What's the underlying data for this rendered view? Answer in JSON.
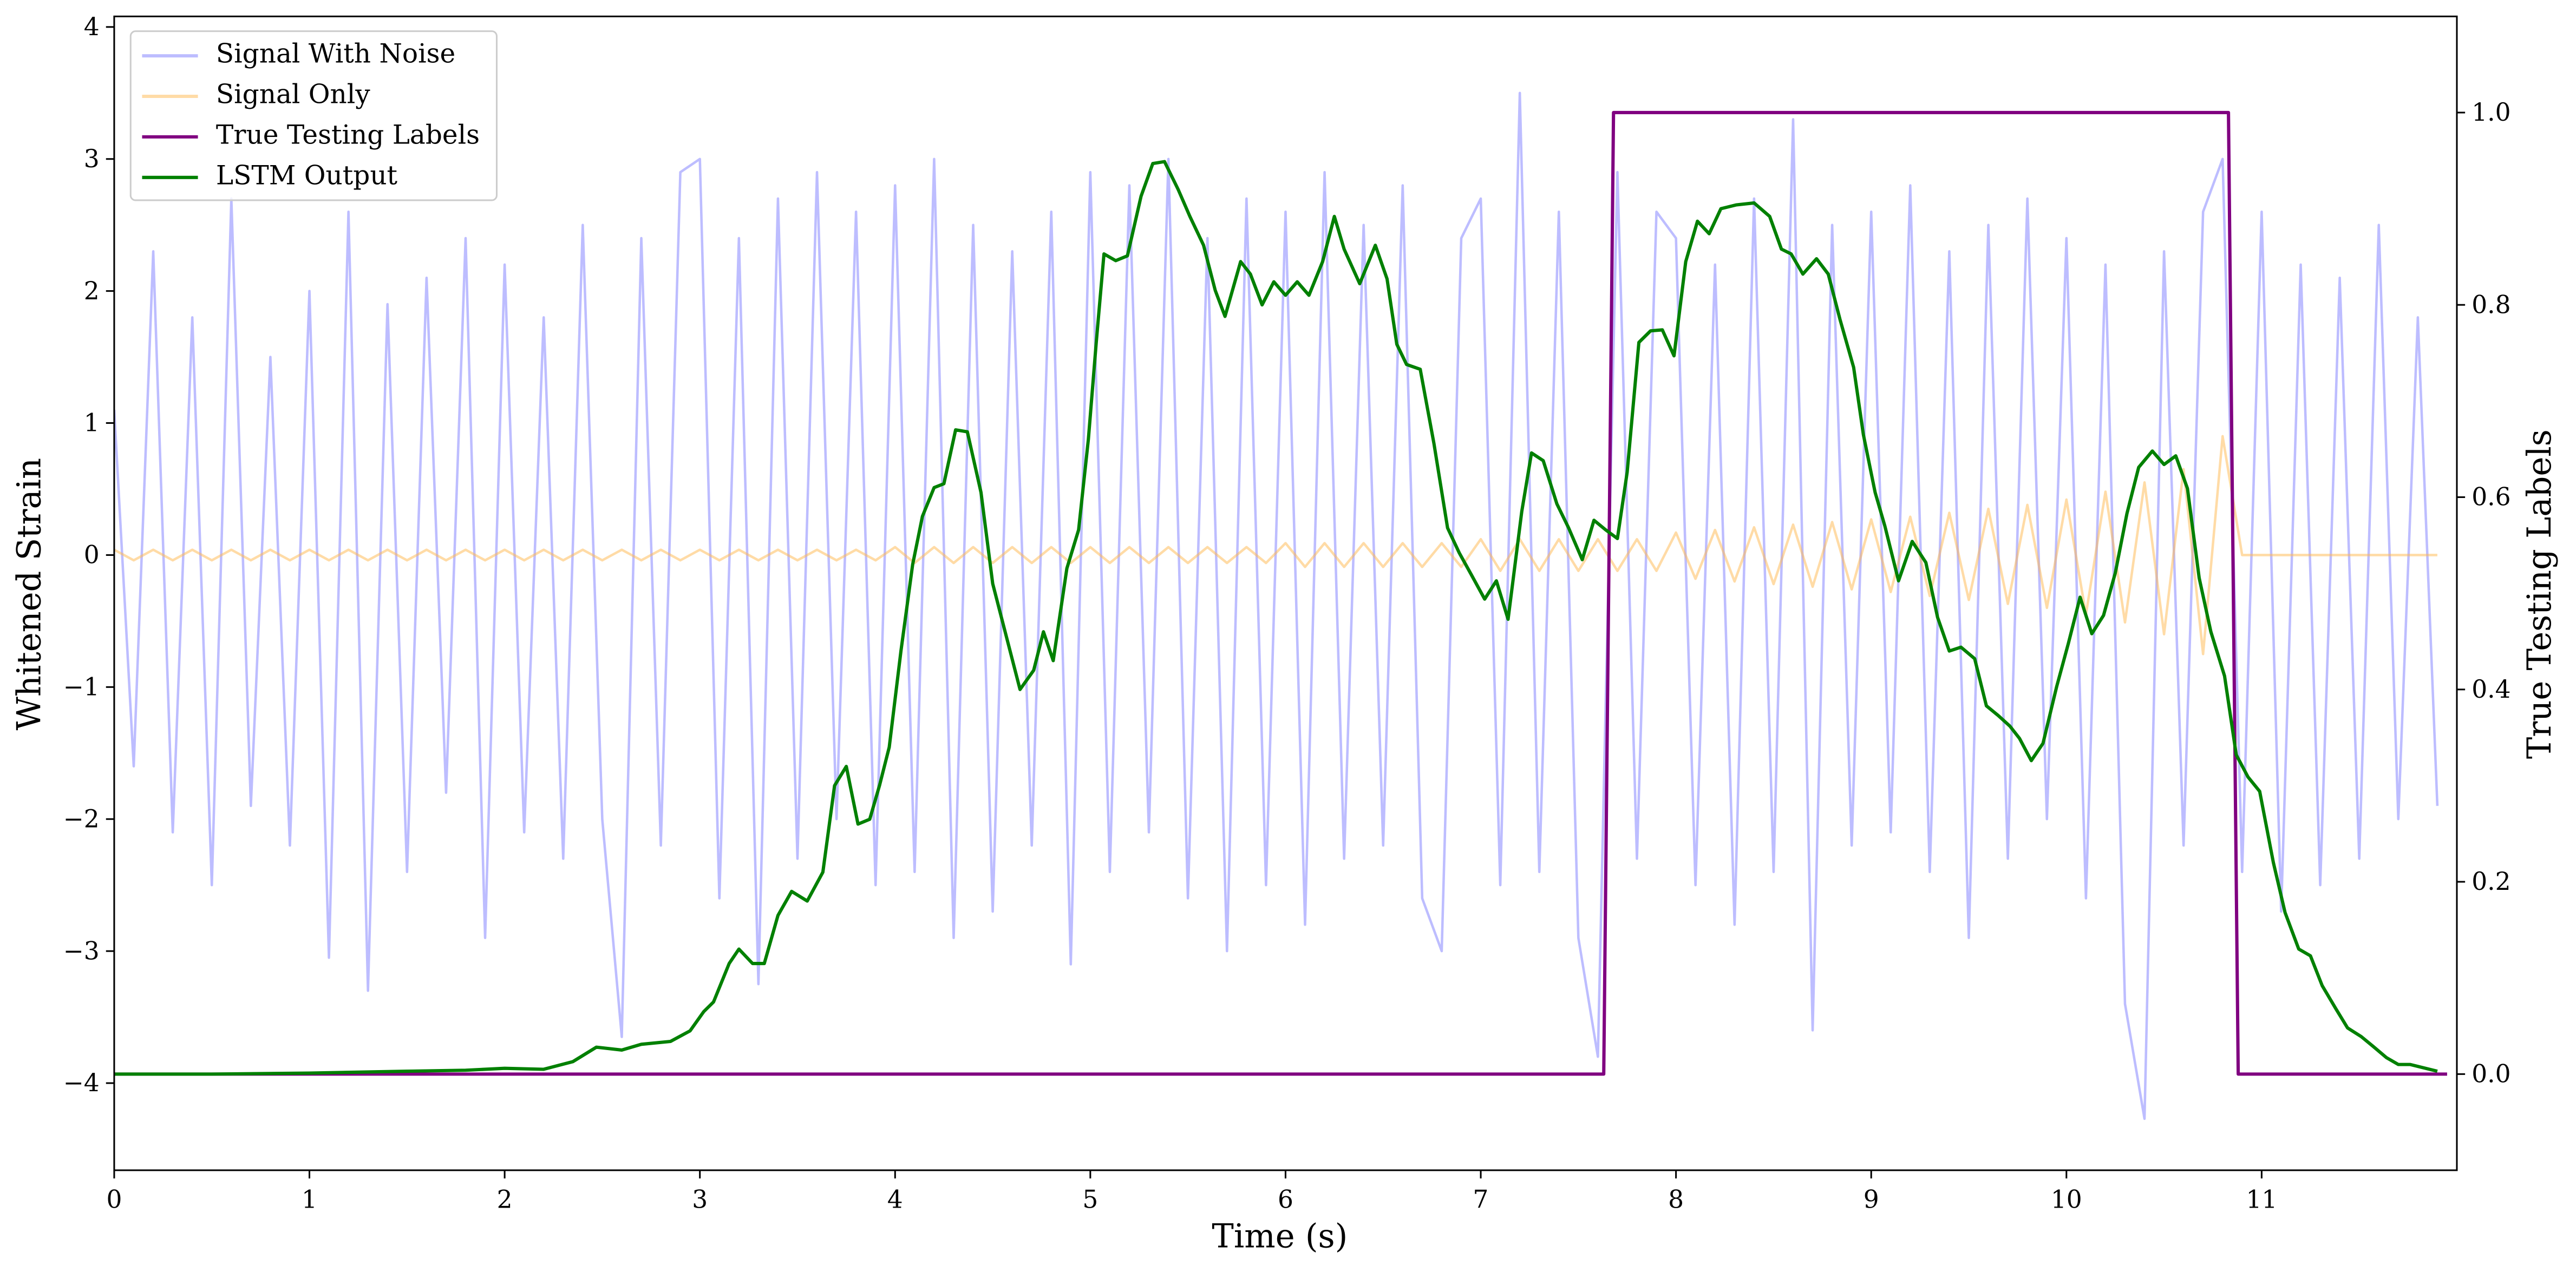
{
  "chart_data": {
    "type": "line",
    "xlabel": "Time (s)",
    "ylabel": "Whitened Strain",
    "y2label": "True Testing Labels",
    "xlim": [
      0,
      12.0
    ],
    "ylim": [
      -4.66,
      4.08
    ],
    "y2lim": [
      -0.1,
      1.1
    ],
    "xticks": [
      0,
      1,
      2,
      3,
      4,
      5,
      6,
      7,
      8,
      9,
      10,
      11
    ],
    "yticks": [
      {
        "value": -4,
        "label": "−4"
      },
      {
        "value": -3,
        "label": "−3"
      },
      {
        "value": -2,
        "label": "−2"
      },
      {
        "value": -1,
        "label": "−1"
      },
      0,
      1,
      2,
      3,
      4
    ],
    "y2ticks": [
      {
        "value": 0,
        "label": "0.0"
      },
      {
        "value": 0.2,
        "label": "0.2"
      },
      {
        "value": 0.4,
        "label": "0.4"
      },
      {
        "value": 0.6,
        "label": "0.6"
      },
      {
        "value": 0.8,
        "label": "0.8"
      },
      {
        "value": 1.0,
        "label": "1.0"
      }
    ],
    "legend": "upper left",
    "x": [
      0,
      0.1,
      0.2,
      0.3,
      0.4,
      0.5,
      0.6,
      0.7,
      0.8,
      0.9,
      1,
      1.1,
      1.2,
      1.3,
      1.4,
      1.5,
      1.6,
      1.7,
      1.8,
      1.9,
      2,
      2.1,
      2.2,
      2.3,
      2.4,
      2.5,
      2.6,
      2.7,
      2.8,
      2.9,
      3,
      3.1,
      3.2,
      3.3,
      3.4,
      3.5,
      3.6,
      3.7,
      3.8,
      3.9,
      4,
      4.1,
      4.2,
      4.3,
      4.4,
      4.5,
      4.6,
      4.7,
      4.8,
      4.9,
      5,
      5.1,
      5.2,
      5.3,
      5.4,
      5.5,
      5.6,
      5.7,
      5.8,
      5.9,
      6,
      6.1,
      6.2,
      6.3,
      6.4,
      6.5,
      6.6,
      6.7,
      6.8,
      6.9,
      7,
      7.1,
      7.2,
      7.3,
      7.4,
      7.5,
      7.6,
      7.7,
      7.8,
      7.9,
      8,
      8.1,
      8.2,
      8.3,
      8.4,
      8.5,
      8.6,
      8.7,
      8.8,
      8.9,
      9,
      9.1,
      9.2,
      9.3,
      9.4,
      9.5,
      9.6,
      9.7,
      9.8,
      9.9,
      10,
      10.1,
      10.2,
      10.3,
      10.4,
      10.5,
      10.6,
      10.7,
      10.8,
      10.9,
      11,
      11.1,
      11.2,
      11.3,
      11.4,
      11.5,
      11.6,
      11.7,
      11.8,
      11.9
    ],
    "series": [
      {
        "name": "Signal With Noise",
        "color": "#7b7bff",
        "values": [
          1.1,
          -1.6,
          2.3,
          -2.1,
          1.8,
          -2.5,
          2.7,
          -1.9,
          1.5,
          -2.2,
          2.0,
          -3.05,
          2.6,
          -3.3,
          1.9,
          -2.4,
          2.1,
          -1.8,
          2.4,
          -2.9,
          2.2,
          -2.1,
          1.8,
          -2.3,
          2.5,
          -2.0,
          -3.65,
          2.4,
          -2.2,
          2.9,
          3.0,
          -2.6,
          2.4,
          -3.25,
          2.7,
          -2.3,
          2.9,
          -2.0,
          2.6,
          -2.5,
          2.8,
          -2.4,
          3.0,
          -2.9,
          2.5,
          -2.7,
          2.3,
          -2.2,
          2.6,
          -3.1,
          2.9,
          -2.4,
          2.8,
          -2.1,
          3.0,
          -2.6,
          2.4,
          -3.0,
          2.7,
          -2.5,
          2.6,
          -2.8,
          2.9,
          -2.3,
          2.5,
          -2.2,
          2.8,
          -2.6,
          -3.0,
          2.4,
          2.7,
          -2.5,
          3.5,
          -2.4,
          2.6,
          -2.9,
          -3.8,
          2.9,
          -2.3,
          2.6,
          2.4,
          -2.5,
          2.2,
          -2.8,
          2.7,
          -2.4,
          3.3,
          -3.6,
          2.5,
          -2.2,
          2.6,
          -2.1,
          2.8,
          -2.4,
          2.3,
          -2.9,
          2.5,
          -2.3,
          2.7,
          -2.0,
          2.4,
          -2.6,
          2.2,
          -3.4,
          -4.27,
          2.3,
          -2.2,
          2.6,
          3.0,
          -2.4,
          2.6,
          -2.7,
          2.2,
          -2.5,
          2.1,
          -2.3,
          2.5,
          -2.0,
          1.8,
          -1.9
        ]
      },
      {
        "name": "Signal Only",
        "color": "#ffb84d",
        "values": [
          0.04,
          -0.04,
          0.04,
          -0.04,
          0.04,
          -0.04,
          0.04,
          -0.04,
          0.04,
          -0.04,
          0.04,
          -0.04,
          0.04,
          -0.04,
          0.04,
          -0.04,
          0.04,
          -0.04,
          0.04,
          -0.04,
          0.04,
          -0.04,
          0.04,
          -0.04,
          0.04,
          -0.04,
          0.04,
          -0.04,
          0.04,
          -0.04,
          0.04,
          -0.04,
          0.04,
          -0.04,
          0.04,
          -0.04,
          0.04,
          -0.04,
          0.04,
          -0.04,
          0.06,
          -0.06,
          0.06,
          -0.06,
          0.06,
          -0.06,
          0.06,
          -0.06,
          0.06,
          -0.06,
          0.06,
          -0.06,
          0.06,
          -0.06,
          0.06,
          -0.06,
          0.06,
          -0.06,
          0.06,
          -0.06,
          0.09,
          -0.09,
          0.09,
          -0.09,
          0.09,
          -0.09,
          0.09,
          -0.09,
          0.09,
          -0.09,
          0.12,
          -0.12,
          0.12,
          -0.12,
          0.12,
          -0.12,
          0.12,
          -0.12,
          0.12,
          -0.12,
          0.17,
          -0.18,
          0.19,
          -0.2,
          0.21,
          -0.22,
          0.23,
          -0.24,
          0.25,
          -0.26,
          0.27,
          -0.28,
          0.29,
          -0.31,
          0.32,
          -0.34,
          0.35,
          -0.37,
          0.38,
          -0.4,
          0.42,
          -0.45,
          0.48,
          -0.51,
          0.55,
          -0.6,
          0.65,
          -0.75,
          0.9,
          0,
          0,
          0,
          0,
          0,
          0,
          0,
          0,
          0,
          0,
          0
        ]
      },
      {
        "name": "True Testing Labels",
        "color": "#800080",
        "axis": "y2",
        "x": [
          0,
          7.63,
          7.68,
          10.83,
          10.88,
          11.95
        ],
        "values": [
          0,
          0,
          1,
          1,
          0,
          0
        ]
      },
      {
        "name": "LSTM Output",
        "color": "#008000",
        "axis": "y2",
        "x": [
          0,
          0.5,
          1,
          1.5,
          1.8,
          2,
          2.2,
          2.35,
          2.47,
          2.6,
          2.7,
          2.85,
          2.95,
          3.02,
          3.07,
          3.15,
          3.2,
          3.27,
          3.33,
          3.4,
          3.47,
          3.55,
          3.63,
          3.69,
          3.75,
          3.81,
          3.87,
          3.92,
          3.97,
          4.03,
          4.09,
          4.14,
          4.2,
          4.25,
          4.31,
          4.37,
          4.44,
          4.5,
          4.57,
          4.64,
          4.71,
          4.76,
          4.81,
          4.88,
          4.94,
          4.99,
          5.03,
          5.07,
          5.13,
          5.19,
          5.26,
          5.32,
          5.38,
          5.45,
          5.51,
          5.58,
          5.64,
          5.69,
          5.77,
          5.82,
          5.88,
          5.94,
          6,
          6.06,
          6.12,
          6.19,
          6.25,
          6.3,
          6.38,
          6.46,
          6.52,
          6.57,
          6.62,
          6.69,
          6.76,
          6.83,
          6.89,
          6.95,
          7.02,
          7.08,
          7.14,
          7.21,
          7.26,
          7.32,
          7.39,
          7.45,
          7.52,
          7.58,
          7.64,
          7.7,
          7.75,
          7.81,
          7.87,
          7.93,
          7.99,
          8.05,
          8.11,
          8.17,
          8.23,
          8.31,
          8.4,
          8.48,
          8.54,
          8.59,
          8.65,
          8.72,
          8.78,
          8.84,
          8.91,
          8.96,
          9.02,
          9.07,
          9.14,
          9.21,
          9.28,
          9.34,
          9.4,
          9.46,
          9.53,
          9.59,
          9.65,
          9.71,
          9.76,
          9.82,
          9.88,
          9.95,
          10.01,
          10.07,
          10.13,
          10.19,
          10.25,
          10.31,
          10.37,
          10.44,
          10.5,
          10.56,
          10.62,
          10.68,
          10.74,
          10.81,
          10.87,
          10.93,
          10.99,
          11.06,
          11.12,
          11.19,
          11.25,
          11.31,
          11.38,
          11.44,
          11.51,
          11.57,
          11.64,
          11.7,
          11.76,
          11.82,
          11.9
        ],
        "values": [
          0,
          0,
          0.001,
          0.003,
          0.004,
          0.006,
          0.005,
          0.013,
          0.028,
          0.025,
          0.031,
          0.034,
          0.045,
          0.065,
          0.075,
          0.115,
          0.13,
          0.115,
          0.115,
          0.165,
          0.19,
          0.18,
          0.21,
          0.3,
          0.32,
          0.26,
          0.265,
          0.3,
          0.34,
          0.44,
          0.53,
          0.58,
          0.61,
          0.614,
          0.67,
          0.668,
          0.605,
          0.51,
          0.455,
          0.4,
          0.42,
          0.46,
          0.43,
          0.526,
          0.566,
          0.66,
          0.76,
          0.853,
          0.846,
          0.851,
          0.913,
          0.947,
          0.949,
          0.92,
          0.892,
          0.862,
          0.815,
          0.788,
          0.845,
          0.832,
          0.8,
          0.824,
          0.81,
          0.824,
          0.81,
          0.845,
          0.892,
          0.858,
          0.822,
          0.862,
          0.827,
          0.759,
          0.738,
          0.733,
          0.656,
          0.568,
          0.542,
          0.52,
          0.494,
          0.513,
          0.473,
          0.585,
          0.646,
          0.638,
          0.593,
          0.568,
          0.535,
          0.576,
          0.566,
          0.557,
          0.626,
          0.761,
          0.773,
          0.774,
          0.747,
          0.845,
          0.887,
          0.874,
          0.9,
          0.904,
          0.906,
          0.892,
          0.858,
          0.853,
          0.832,
          0.848,
          0.832,
          0.785,
          0.735,
          0.665,
          0.605,
          0.57,
          0.513,
          0.554,
          0.532,
          0.475,
          0.44,
          0.444,
          0.432,
          0.383,
          0.373,
          0.362,
          0.349,
          0.326,
          0.344,
          0.403,
          0.448,
          0.496,
          0.458,
          0.477,
          0.521,
          0.583,
          0.631,
          0.648,
          0.634,
          0.643,
          0.609,
          0.516,
          0.46,
          0.414,
          0.332,
          0.309,
          0.294,
          0.22,
          0.168,
          0.13,
          0.123,
          0.092,
          0.068,
          0.048,
          0.039,
          0.029,
          0.017,
          0.01,
          0.01,
          0.007,
          0.003
        ]
      }
    ]
  }
}
